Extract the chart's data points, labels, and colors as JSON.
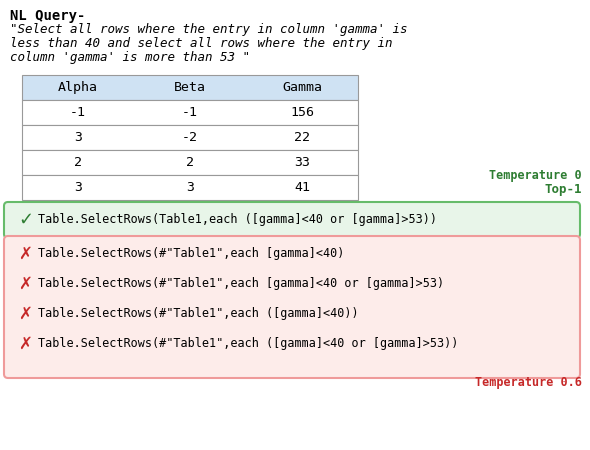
{
  "title_label": "NL Query-",
  "query_line1": "\"Select all rows where the entry in column 'gamma' is",
  "query_line2": "less than 40 and select all rows where the entry in",
  "query_line3": "column 'gamma' is more than 53 \"",
  "table_headers": [
    "Alpha",
    "Beta",
    "Gamma"
  ],
  "table_rows": [
    [
      "-1",
      "-1",
      "156"
    ],
    [
      "3",
      "-2",
      "22"
    ],
    [
      "2",
      "2",
      "33"
    ],
    [
      "3",
      "3",
      "41"
    ]
  ],
  "table_header_bg": "#cfe2f3",
  "table_row_bg": "#ffffff",
  "table_border_color": "#999999",
  "temp0_label": "Temperature 0",
  "top1_label": "Top-1",
  "temp0_color": "#2e7d32",
  "top1_color": "#2e7d32",
  "correct_answer": "Table.SelectRows(Table1,each ([gamma]<40 or [gamma]>53))",
  "correct_bg": "#e8f5e9",
  "correct_border": "#66bb6a",
  "correct_color": "#2e7d32",
  "wrong_answers": [
    "Table.SelectRows(#\"Table1\",each [gamma]<40)",
    "Table.SelectRows(#\"Table1\",each [gamma]<40 or [gamma]>53)",
    "Table.SelectRows(#\"Table1\",each ([gamma]<40))",
    "Table.SelectRows(#\"Table1\",each ([gamma]<40 or [gamma]>53))"
  ],
  "wrong_bg": "#fdecea",
  "wrong_border": "#ef9a9a",
  "wrong_color": "#c62828",
  "temp06_label": "Temperature 0.6",
  "temp06_color": "#c62828",
  "bg_color": "#ffffff"
}
